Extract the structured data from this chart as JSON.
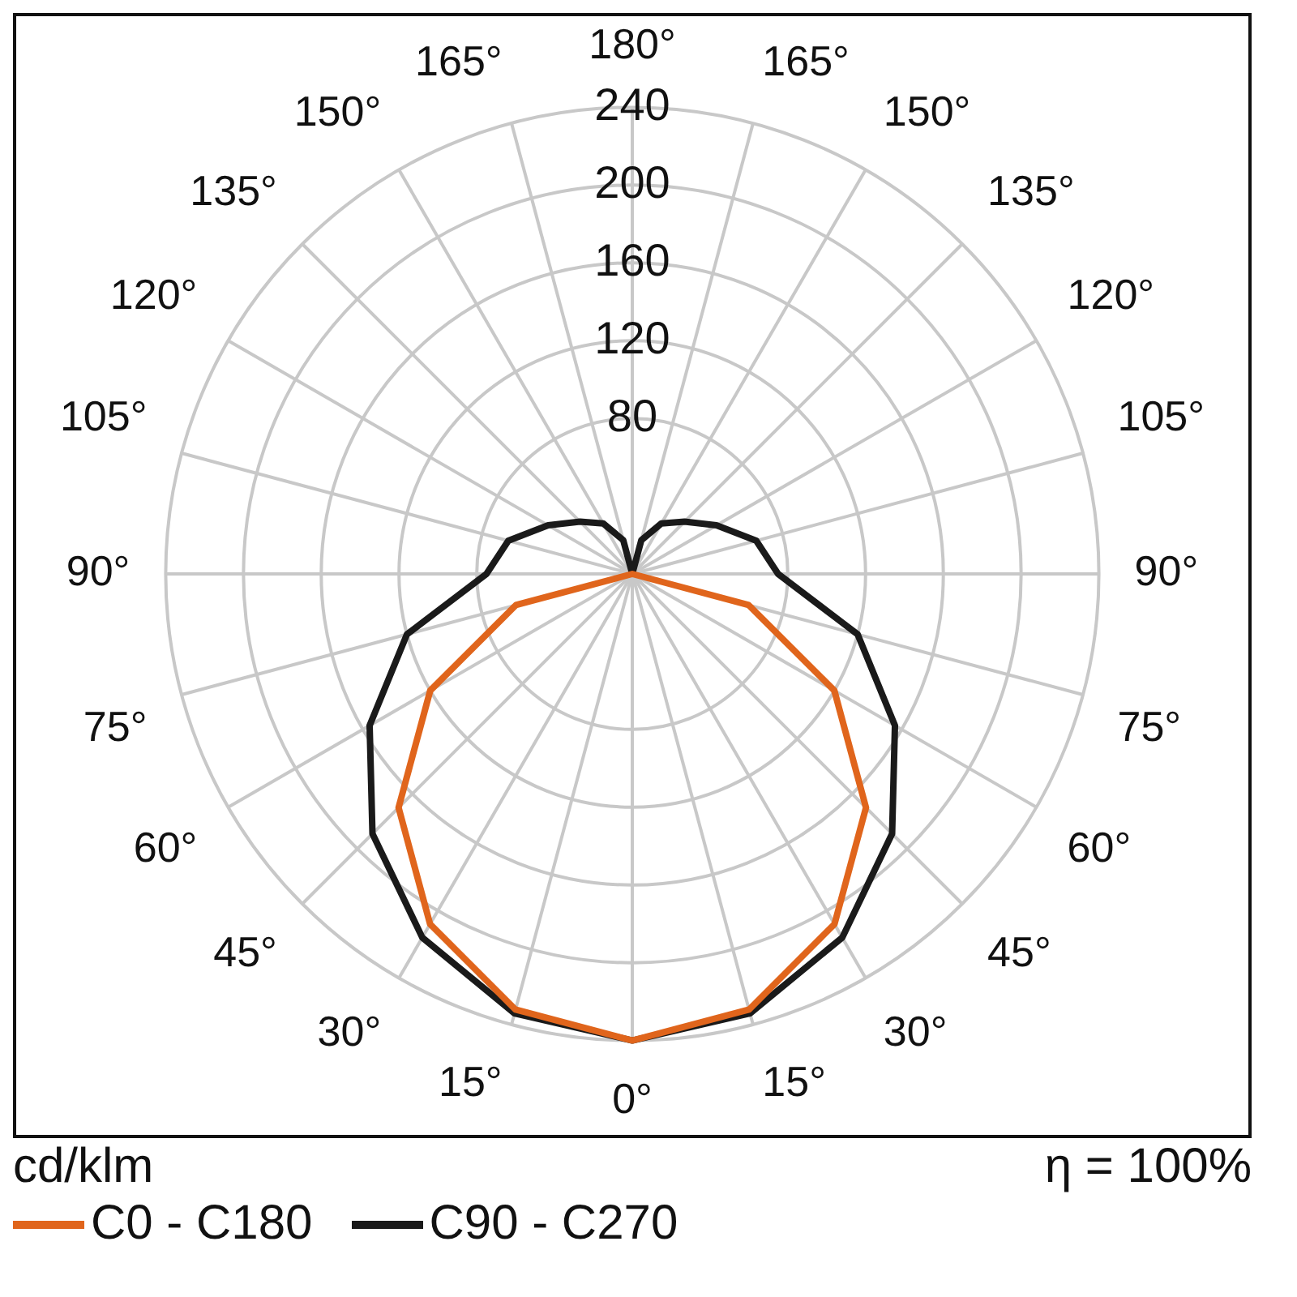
{
  "chart_data": {
    "type": "radar",
    "ylabel": "cd/klm",
    "annotations": [
      "η = 100%"
    ],
    "categories": [
      "180°",
      "165°",
      "150°",
      "135°",
      "120°",
      "105°",
      "90°",
      "75°",
      "60°",
      "45°",
      "30°",
      "15°",
      "0°",
      "15°",
      "30°",
      "45°",
      "60°",
      "75°",
      "90°",
      "105°",
      "120°",
      "135°",
      "150°",
      "165°"
    ],
    "series": [
      {
        "name": "C0 - C180",
        "color": "#e0651c",
        "values": [
          0,
          0,
          0,
          0,
          0,
          0,
          0,
          62,
          120,
          170,
          208,
          232,
          240,
          232,
          208,
          170,
          120,
          62,
          0,
          0,
          0,
          0,
          0,
          0
        ]
      },
      {
        "name": "C90 - C270",
        "color": "#1a1a1a",
        "values": [
          0,
          18,
          30,
          38,
          50,
          66,
          75,
          120,
          156,
          189,
          216,
          234,
          240,
          234,
          216,
          189,
          156,
          120,
          75,
          66,
          50,
          38,
          30,
          18
        ]
      }
    ],
    "ylim": [
      0,
      240
    ],
    "yticks": [
      80,
      120,
      160,
      200,
      240
    ],
    "grid": true,
    "legend": "bottom left",
    "marker": "none",
    "line_style": "solid"
  }
}
